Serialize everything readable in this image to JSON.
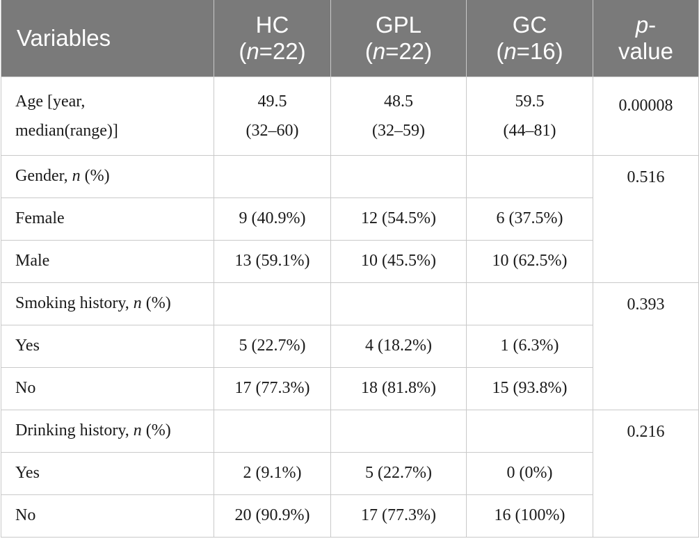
{
  "header": {
    "variables": "Variables",
    "hc": "HC",
    "hc_n": "22",
    "gpl": "GPL",
    "gpl_n": "22",
    "gc": "GC",
    "gc_n": "16",
    "n_italic": "n",
    "eq": "=",
    "paren_open": "(",
    "paren_close": ")",
    "p_italic": "p",
    "p_dash": "-",
    "p_value": "value"
  },
  "age": {
    "label_line1": "Age [year,",
    "label_line2": "median(range)]",
    "hc_line1": "49.5",
    "hc_line2": "(32–60)",
    "gpl_line1": "48.5",
    "gpl_line2": "(32–59)",
    "gc_line1": "59.5",
    "gc_line2": "(44–81)",
    "p": "0.00008"
  },
  "gender": {
    "label_prefix": "Gender, ",
    "label_n": "n",
    "label_suffix": " (%)",
    "p": "0.516",
    "rows": [
      {
        "label": "Female",
        "hc": "9 (40.9%)",
        "gpl": "12 (54.5%)",
        "gc": "6 (37.5%)"
      },
      {
        "label": "Male",
        "hc": "13 (59.1%)",
        "gpl": "10 (45.5%)",
        "gc": "10 (62.5%)"
      }
    ]
  },
  "smoking": {
    "label_prefix": "Smoking history, ",
    "label_n": "n",
    "label_suffix": " (%)",
    "p": "0.393",
    "rows": [
      {
        "label": "Yes",
        "hc": "5 (22.7%)",
        "gpl": "4 (18.2%)",
        "gc": "1 (6.3%)"
      },
      {
        "label": "No",
        "hc": "17 (77.3%)",
        "gpl": "18 (81.8%)",
        "gc": "15 (93.8%)"
      }
    ]
  },
  "drinking": {
    "label_prefix": "Drinking history, ",
    "label_n": "n",
    "label_suffix": " (%)",
    "p": "0.216",
    "rows": [
      {
        "label": "Yes",
        "hc": "2 (9.1%)",
        "gpl": "5 (22.7%)",
        "gc": "0 (0%)"
      },
      {
        "label": "No",
        "hc": "20 (90.9%)",
        "gpl": "17 (77.3%)",
        "gc": "16 (100%)"
      }
    ]
  },
  "colors": {
    "header_bg": "#7a7a7a",
    "header_text": "#ffffff",
    "border": "#c9c9c9",
    "body_text": "#1a1a1a"
  }
}
